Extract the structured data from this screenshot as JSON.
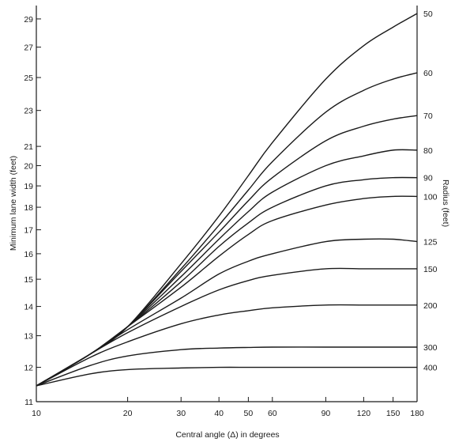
{
  "chart_data": {
    "type": "line",
    "title": "",
    "xlabel": "Central angle (Δ) in degrees",
    "ylabel": "Minimum lane width (feet)",
    "right_label": "Radius (feet)",
    "x_scale": "log",
    "y_scale": "log",
    "xlim": [
      10,
      180
    ],
    "ylim": [
      11,
      30
    ],
    "x_ticks": [
      10,
      20,
      30,
      40,
      50,
      60,
      90,
      120,
      150,
      180
    ],
    "y_ticks": [
      11,
      12,
      13,
      14,
      15,
      16,
      17,
      18,
      19,
      20,
      21,
      23,
      25,
      27,
      29
    ],
    "grid": false,
    "legend": "labels at right end of each curve",
    "series": [
      {
        "name": "50",
        "x": [
          10,
          15,
          20,
          30,
          40,
          50,
          60,
          90,
          120,
          150,
          180
        ],
        "y": [
          11.45,
          12.4,
          13.3,
          15.6,
          17.6,
          19.5,
          21.2,
          24.9,
          27.1,
          28.4,
          29.4
        ]
      },
      {
        "name": "60",
        "x": [
          10,
          15,
          20,
          30,
          40,
          50,
          60,
          90,
          120,
          150,
          180
        ],
        "y": [
          11.45,
          12.4,
          13.3,
          15.4,
          17.2,
          18.8,
          20.2,
          22.9,
          24.2,
          24.9,
          25.3
        ]
      },
      {
        "name": "70",
        "x": [
          10,
          15,
          20,
          30,
          40,
          50,
          60,
          90,
          120,
          150,
          180
        ],
        "y": [
          11.45,
          12.4,
          13.3,
          15.3,
          16.9,
          18.3,
          19.4,
          21.3,
          22.1,
          22.5,
          22.7
        ]
      },
      {
        "name": "80",
        "x": [
          10,
          15,
          20,
          30,
          40,
          50,
          60,
          90,
          120,
          150,
          180
        ],
        "y": [
          11.45,
          12.4,
          13.3,
          15.1,
          16.6,
          17.8,
          18.7,
          20.0,
          20.5,
          20.8,
          20.8
        ]
      },
      {
        "name": "90",
        "x": [
          10,
          15,
          20,
          30,
          40,
          50,
          60,
          90,
          120,
          150,
          180
        ],
        "y": [
          11.45,
          12.4,
          13.3,
          14.9,
          16.3,
          17.3,
          18.0,
          19.0,
          19.3,
          19.4,
          19.4
        ]
      },
      {
        "name": "100",
        "x": [
          10,
          15,
          20,
          30,
          40,
          50,
          60,
          90,
          120,
          150,
          180
        ],
        "y": [
          11.45,
          12.4,
          13.3,
          14.7,
          15.9,
          16.8,
          17.4,
          18.1,
          18.4,
          18.5,
          18.5
        ]
      },
      {
        "name": "125",
        "x": [
          10,
          15,
          20,
          30,
          40,
          50,
          60,
          90,
          120,
          150,
          180
        ],
        "y": [
          11.45,
          12.4,
          13.2,
          14.3,
          15.2,
          15.7,
          16.0,
          16.5,
          16.6,
          16.6,
          16.5
        ]
      },
      {
        "name": "150",
        "x": [
          10,
          15,
          20,
          30,
          40,
          50,
          60,
          90,
          120,
          150,
          180
        ],
        "y": [
          11.45,
          12.4,
          13.1,
          14.0,
          14.6,
          14.95,
          15.15,
          15.4,
          15.4,
          15.4,
          15.4
        ]
      },
      {
        "name": "200",
        "x": [
          10,
          15,
          20,
          30,
          40,
          50,
          60,
          90,
          120,
          150,
          180
        ],
        "y": [
          11.45,
          12.3,
          12.8,
          13.4,
          13.7,
          13.85,
          13.95,
          14.05,
          14.05,
          14.05,
          14.05
        ]
      },
      {
        "name": "300",
        "x": [
          10,
          15,
          20,
          30,
          40,
          50,
          60,
          90,
          120,
          150,
          180
        ],
        "y": [
          11.45,
          12.05,
          12.35,
          12.55,
          12.6,
          12.62,
          12.63,
          12.63,
          12.63,
          12.63,
          12.63
        ]
      },
      {
        "name": "400",
        "x": [
          10,
          15,
          20,
          30,
          40,
          50,
          60,
          90,
          120,
          150,
          180
        ],
        "y": [
          11.45,
          11.8,
          11.93,
          11.98,
          12.0,
          12.0,
          12.0,
          12.0,
          12.0,
          12.0,
          12.0
        ]
      }
    ]
  }
}
